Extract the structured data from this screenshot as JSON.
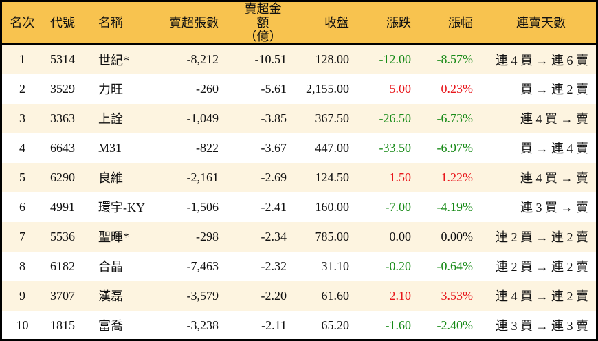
{
  "colors": {
    "header_bg": "#F8C34F",
    "row_alt_bg": "#FDF4E0",
    "up": "#E8161B",
    "down": "#178A17"
  },
  "headers": {
    "rank": "名次",
    "code": "代號",
    "name": "名稱",
    "net_sell_lots": "賣超張數",
    "net_sell_amount_line1": "賣超金額",
    "net_sell_amount_line2": "（億）",
    "close": "收盤",
    "change": "漲跌",
    "change_pct": "漲幅",
    "streak": "連賣天數"
  },
  "rows": [
    {
      "rank": "1",
      "code": "5314",
      "name": "世紀*",
      "lots": "-8,212",
      "amount": "-10.51",
      "close": "128.00",
      "change": "-12.00",
      "pct": "-8.57%",
      "trend": "down",
      "streak": "連 4 買 → 連 6 賣"
    },
    {
      "rank": "2",
      "code": "3529",
      "name": "力旺",
      "lots": "-260",
      "amount": "-5.61",
      "close": "2,155.00",
      "change": "5.00",
      "pct": "0.23%",
      "trend": "up",
      "streak": "買 → 連 2 賣"
    },
    {
      "rank": "3",
      "code": "3363",
      "name": "上詮",
      "lots": "-1,049",
      "amount": "-3.85",
      "close": "367.50",
      "change": "-26.50",
      "pct": "-6.73%",
      "trend": "down",
      "streak": "連 4 買 → 賣"
    },
    {
      "rank": "4",
      "code": "6643",
      "name": "M31",
      "lots": "-822",
      "amount": "-3.67",
      "close": "447.00",
      "change": "-33.50",
      "pct": "-6.97%",
      "trend": "down",
      "streak": "買 → 連 4 賣"
    },
    {
      "rank": "5",
      "code": "6290",
      "name": "良維",
      "lots": "-2,161",
      "amount": "-2.69",
      "close": "124.50",
      "change": "1.50",
      "pct": "1.22%",
      "trend": "up",
      "streak": "連 4 買 → 賣"
    },
    {
      "rank": "6",
      "code": "4991",
      "name": "環宇-KY",
      "lots": "-1,506",
      "amount": "-2.41",
      "close": "160.00",
      "change": "-7.00",
      "pct": "-4.19%",
      "trend": "down",
      "streak": "連 3 買 → 賣"
    },
    {
      "rank": "7",
      "code": "5536",
      "name": "聖暉*",
      "lots": "-298",
      "amount": "-2.34",
      "close": "785.00",
      "change": "0.00",
      "pct": "0.00%",
      "trend": "flat",
      "streak": "連 2 買 → 連 2 賣"
    },
    {
      "rank": "8",
      "code": "6182",
      "name": "合晶",
      "lots": "-7,463",
      "amount": "-2.32",
      "close": "31.10",
      "change": "-0.20",
      "pct": "-0.64%",
      "trend": "down",
      "streak": "連 2 買 → 連 2 賣"
    },
    {
      "rank": "9",
      "code": "3707",
      "name": "漢磊",
      "lots": "-3,579",
      "amount": "-2.20",
      "close": "61.60",
      "change": "2.10",
      "pct": "3.53%",
      "trend": "up",
      "streak": "連 4 買 → 連 2 賣"
    },
    {
      "rank": "10",
      "code": "1815",
      "name": "富喬",
      "lots": "-3,238",
      "amount": "-2.11",
      "close": "65.20",
      "change": "-1.60",
      "pct": "-2.40%",
      "trend": "down",
      "streak": "連 3 買 → 連 3 賣"
    }
  ]
}
